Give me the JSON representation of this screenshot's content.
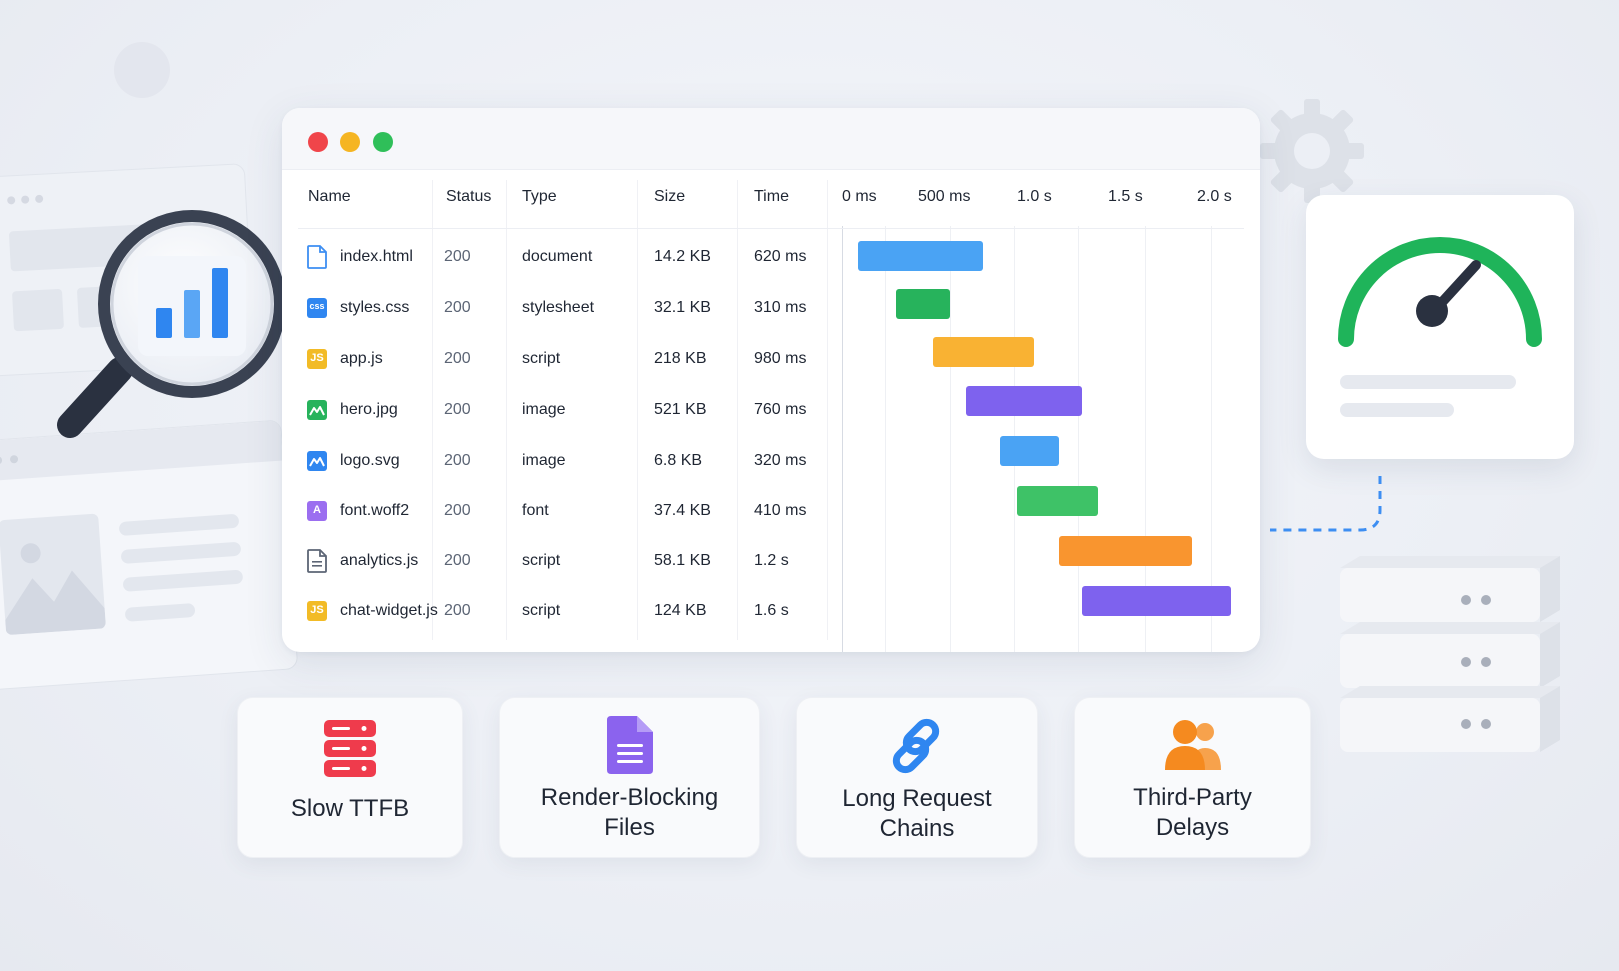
{
  "table": {
    "headers": {
      "name": "Name",
      "status": "Status",
      "type": "Type",
      "size": "Size",
      "time": "Time"
    },
    "timeline_ticks": [
      "0 ms",
      "500 ms",
      "1.0 s",
      "1.5 s",
      "2.0 s"
    ],
    "rows": [
      {
        "name": "index.html",
        "status": "200",
        "type": "document",
        "size": "14.2 KB",
        "time": "620 ms",
        "icon": "html-file-icon",
        "icon_text": "",
        "icon_color": "#3d8ef2"
      },
      {
        "name": "styles.css",
        "status": "200",
        "type": "stylesheet",
        "size": "32.1 KB",
        "time": "310 ms",
        "icon": "css-file-icon",
        "icon_text": "css",
        "icon_color": "#2f86f0"
      },
      {
        "name": "app.js",
        "status": "200",
        "type": "script",
        "size": "218 KB",
        "time": "980 ms",
        "icon": "js-file-icon",
        "icon_text": "JS",
        "icon_color": "#f2bb26"
      },
      {
        "name": "hero.jpg",
        "status": "200",
        "type": "image",
        "size": "521 KB",
        "time": "760 ms",
        "icon": "image-file-icon",
        "icon_text": "",
        "icon_color": "#27b35c"
      },
      {
        "name": "logo.svg",
        "status": "200",
        "type": "image",
        "size": "6.8 KB",
        "time": "320 ms",
        "icon": "image-file-icon",
        "icon_text": "",
        "icon_color": "#2f86f0"
      },
      {
        "name": "font.woff2",
        "status": "200",
        "type": "font",
        "size": "37.4 KB",
        "time": "410 ms",
        "icon": "font-file-icon",
        "icon_text": "A",
        "icon_color": "#9b6ef0"
      },
      {
        "name": "analytics.js",
        "status": "200",
        "type": "script",
        "size": "58.1 KB",
        "time": "1.2 s",
        "icon": "document-file-icon",
        "icon_text": "",
        "icon_color": "#5c6575"
      },
      {
        "name": "chat-widget.js",
        "status": "200",
        "type": "script",
        "size": "124 KB",
        "time": "1.6 s",
        "icon": "js-file-icon",
        "icon_text": "JS",
        "icon_color": "#f2bb26"
      }
    ]
  },
  "waterfall": {
    "bar_colors": [
      "#4aa3f4",
      "#27b35c",
      "#f9b233",
      "#7e62ee",
      "#4aa3f4",
      "#3ec267",
      "#f9952f",
      "#7e62ee"
    ]
  },
  "cards": [
    {
      "label_lines": [
        "Slow TTFB"
      ],
      "icon": "server-stack-icon",
      "color": "#ef3b4c"
    },
    {
      "label_lines": [
        "Render-Blocking",
        "Files"
      ],
      "icon": "document-icon",
      "color": "#8b63ee"
    },
    {
      "label_lines": [
        "Long Request",
        "Chains"
      ],
      "icon": "link-chain-icon",
      "color": "#2f86f0"
    },
    {
      "label_lines": [
        "Third-Party",
        "Delays"
      ],
      "icon": "users-icon",
      "color": "#f58a1f"
    }
  ],
  "colors": {
    "traffic_red": "#f0454a",
    "traffic_yellow": "#f5b522",
    "traffic_green": "#2fbf59",
    "gauge_green": "#1fb45a",
    "dash_blue": "#3d8ef2"
  }
}
